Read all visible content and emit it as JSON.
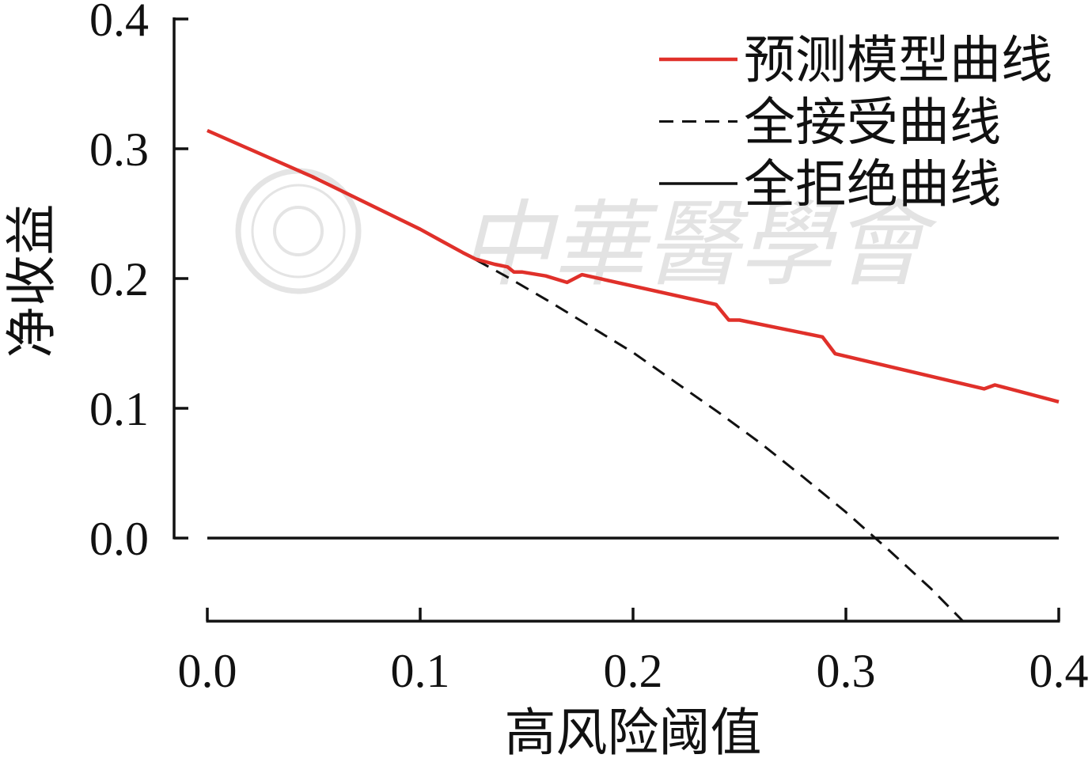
{
  "watermark": {
    "text": "中華醫學會"
  },
  "chart_data": {
    "type": "line",
    "xlabel": "高风险阈值",
    "ylabel": "净收益",
    "xlim": [
      0,
      0.4
    ],
    "ylim": [
      -0.064,
      0.4
    ],
    "x_ticks": [
      0,
      0.1,
      0.2,
      0.3,
      0.4
    ],
    "x_tick_labels": [
      "0.0",
      "0.1",
      "0.2",
      "0.3",
      "0.4"
    ],
    "y_ticks": [
      0,
      0.1,
      0.2,
      0.3,
      0.4
    ],
    "y_tick_labels": [
      "0.0",
      "0.1",
      "0.2",
      "0.3",
      "0.4"
    ],
    "grid": false,
    "legend": "top-right",
    "series": [
      {
        "name": "预测模型曲线",
        "style": "solid",
        "color": "#e0302a",
        "points": [
          [
            0,
            0.314
          ],
          [
            0.05,
            0.278
          ],
          [
            0.1,
            0.238
          ],
          [
            0.11,
            0.229
          ],
          [
            0.12,
            0.22
          ],
          [
            0.126,
            0.215
          ],
          [
            0.135,
            0.211
          ],
          [
            0.141,
            0.209
          ],
          [
            0.144,
            0.205
          ],
          [
            0.148,
            0.205
          ],
          [
            0.159,
            0.202
          ],
          [
            0.169,
            0.197
          ],
          [
            0.176,
            0.203
          ],
          [
            0.239,
            0.18
          ],
          [
            0.245,
            0.168
          ],
          [
            0.25,
            0.168
          ],
          [
            0.289,
            0.155
          ],
          [
            0.295,
            0.142
          ],
          [
            0.365,
            0.115
          ],
          [
            0.37,
            0.118
          ],
          [
            0.4,
            0.105
          ]
        ]
      },
      {
        "name": "全接受曲线",
        "style": "dashed",
        "color": "#111111",
        "points": [
          [
            0,
            0.314
          ],
          [
            0.02,
            0.3
          ],
          [
            0.04,
            0.285
          ],
          [
            0.06,
            0.27
          ],
          [
            0.08,
            0.254
          ],
          [
            0.1,
            0.238
          ],
          [
            0.12,
            0.22
          ],
          [
            0.14,
            0.202
          ],
          [
            0.16,
            0.183
          ],
          [
            0.18,
            0.163
          ],
          [
            0.2,
            0.143
          ],
          [
            0.22,
            0.12
          ],
          [
            0.24,
            0.097
          ],
          [
            0.26,
            0.073
          ],
          [
            0.28,
            0.047
          ],
          [
            0.3,
            0.02
          ],
          [
            0.32,
            -0.009
          ],
          [
            0.34,
            -0.039
          ],
          [
            0.355,
            -0.064
          ]
        ]
      },
      {
        "name": "全拒绝曲线",
        "style": "solid",
        "color": "#111111",
        "points": [
          [
            0,
            0
          ],
          [
            0.4,
            0
          ]
        ]
      }
    ]
  }
}
